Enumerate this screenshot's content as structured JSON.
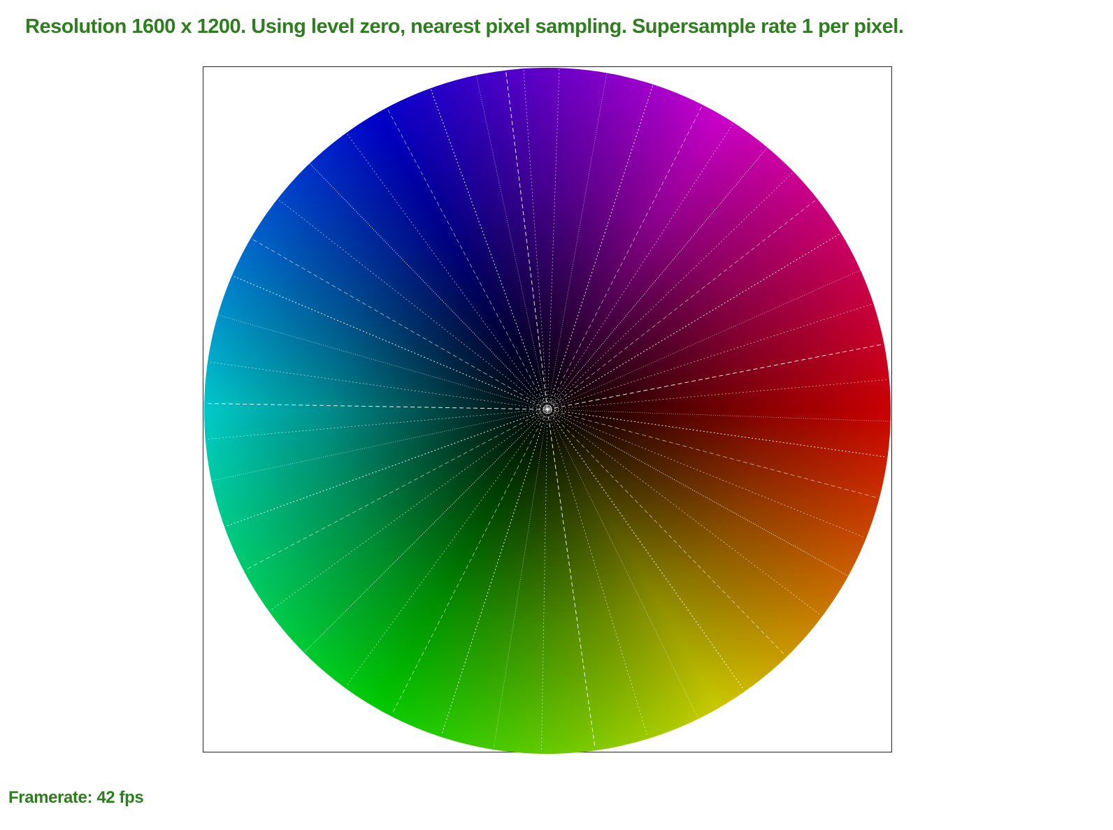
{
  "header": {
    "status_text": "Resolution 1600 x 1200. Using level zero, nearest pixel sampling. Supersample rate 1 per pixel."
  },
  "viewport": {
    "content": "color-wheel",
    "hue_stops": [
      "#ff0000",
      "#ffff00",
      "#00ff00",
      "#00ffff",
      "#0000ff",
      "#ff00ff",
      "#ff0000"
    ],
    "center_color": "#000000",
    "ray_color": "#ffffff"
  },
  "footer": {
    "framerate_text": "Framerate: 42 fps"
  },
  "colors": {
    "text_green": "#2e7d1f",
    "frame_border": "#222222"
  }
}
